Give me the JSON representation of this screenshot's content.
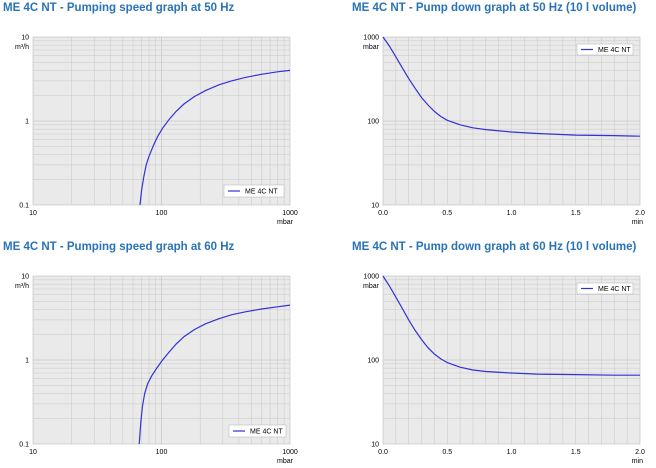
{
  "colors": {
    "plot_bg": "#eaeaea",
    "grid": "#c8c8c8",
    "line": "#3232d6",
    "title": "#2a73b5"
  },
  "chart_data": [
    {
      "type": "line",
      "title": "ME 4C NT - Pumping speed graph at 50 Hz",
      "xscale": "log",
      "yscale": "log",
      "xlim": [
        10,
        1000
      ],
      "ylim": [
        0.1,
        10
      ],
      "x_ticks": [
        "10",
        "100",
        "1000"
      ],
      "y_ticks": [
        "0.1",
        "1",
        "10"
      ],
      "x_unit": "mbar",
      "y_unit": "m³/h",
      "legend_position": "bottom-right",
      "grid": true,
      "series": [
        {
          "name": "ME 4C NT",
          "x": [
            68,
            70,
            73,
            76,
            80,
            86,
            93,
            102,
            115,
            130,
            150,
            180,
            220,
            280,
            350,
            450,
            600,
            800,
            1000
          ],
          "y": [
            0.1,
            0.15,
            0.22,
            0.3,
            0.38,
            0.5,
            0.65,
            0.82,
            1.05,
            1.3,
            1.6,
            1.95,
            2.3,
            2.7,
            3.0,
            3.3,
            3.6,
            3.85,
            4.0
          ]
        }
      ]
    },
    {
      "type": "line",
      "title": "ME 4C NT - Pump down graph at 50 Hz (10 l volume)",
      "xscale": "linear",
      "yscale": "log",
      "xlim": [
        0,
        2.0
      ],
      "ylim": [
        10,
        1000
      ],
      "x_ticks": [
        "0.0",
        "0.5",
        "1.0",
        "1.5",
        "2.0"
      ],
      "y_ticks": [
        "10",
        "100",
        "1000"
      ],
      "x_unit": "min",
      "y_unit": "mbar",
      "legend_position": "top-right",
      "grid": true,
      "series": [
        {
          "name": "ME 4C NT",
          "x": [
            0,
            0.05,
            0.1,
            0.15,
            0.2,
            0.25,
            0.3,
            0.35,
            0.4,
            0.45,
            0.5,
            0.6,
            0.7,
            0.8,
            1.0,
            1.2,
            1.5,
            1.8,
            2.0
          ],
          "y": [
            1000,
            780,
            580,
            430,
            320,
            245,
            190,
            155,
            130,
            113,
            102,
            90,
            83,
            79,
            74,
            71,
            68,
            67,
            66
          ]
        }
      ]
    },
    {
      "type": "line",
      "title": "ME 4C NT - Pumping speed graph at 60 Hz",
      "xscale": "log",
      "yscale": "log",
      "xlim": [
        10,
        1000
      ],
      "ylim": [
        0.1,
        10
      ],
      "x_ticks": [
        "10",
        "100",
        "1000"
      ],
      "y_ticks": [
        "0.1",
        "1",
        "10"
      ],
      "x_unit": "mbar",
      "y_unit": "m³/h",
      "legend_position": "bottom-right",
      "grid": true,
      "series": [
        {
          "name": "ME 4C NT",
          "x": [
            67,
            69,
            71,
            74,
            78,
            84,
            92,
            102,
            115,
            130,
            150,
            180,
            220,
            280,
            350,
            450,
            600,
            800,
            1000
          ],
          "y": [
            0.1,
            0.18,
            0.28,
            0.4,
            0.52,
            0.65,
            0.8,
            1.0,
            1.25,
            1.55,
            1.9,
            2.3,
            2.7,
            3.1,
            3.45,
            3.75,
            4.05,
            4.3,
            4.5
          ]
        }
      ]
    },
    {
      "type": "line",
      "title": "ME 4C NT - Pump down graph at 60 Hz (10 l volume)",
      "xscale": "linear",
      "yscale": "log",
      "xlim": [
        0,
        2.0
      ],
      "ylim": [
        10,
        1000
      ],
      "x_ticks": [
        "0.0",
        "0.5",
        "1.0",
        "1.5",
        "2.0"
      ],
      "y_ticks": [
        "10",
        "100",
        "1000"
      ],
      "x_unit": "min",
      "y_unit": "mbar",
      "legend_position": "top-right",
      "grid": true,
      "series": [
        {
          "name": "ME 4C NT",
          "x": [
            0,
            0.05,
            0.1,
            0.15,
            0.2,
            0.25,
            0.3,
            0.35,
            0.4,
            0.45,
            0.5,
            0.6,
            0.7,
            0.8,
            1.0,
            1.2,
            1.5,
            1.8,
            2.0
          ],
          "y": [
            1000,
            760,
            560,
            410,
            300,
            225,
            175,
            140,
            118,
            103,
            93,
            82,
            76,
            73,
            70,
            68,
            67,
            66,
            66
          ]
        }
      ]
    }
  ]
}
